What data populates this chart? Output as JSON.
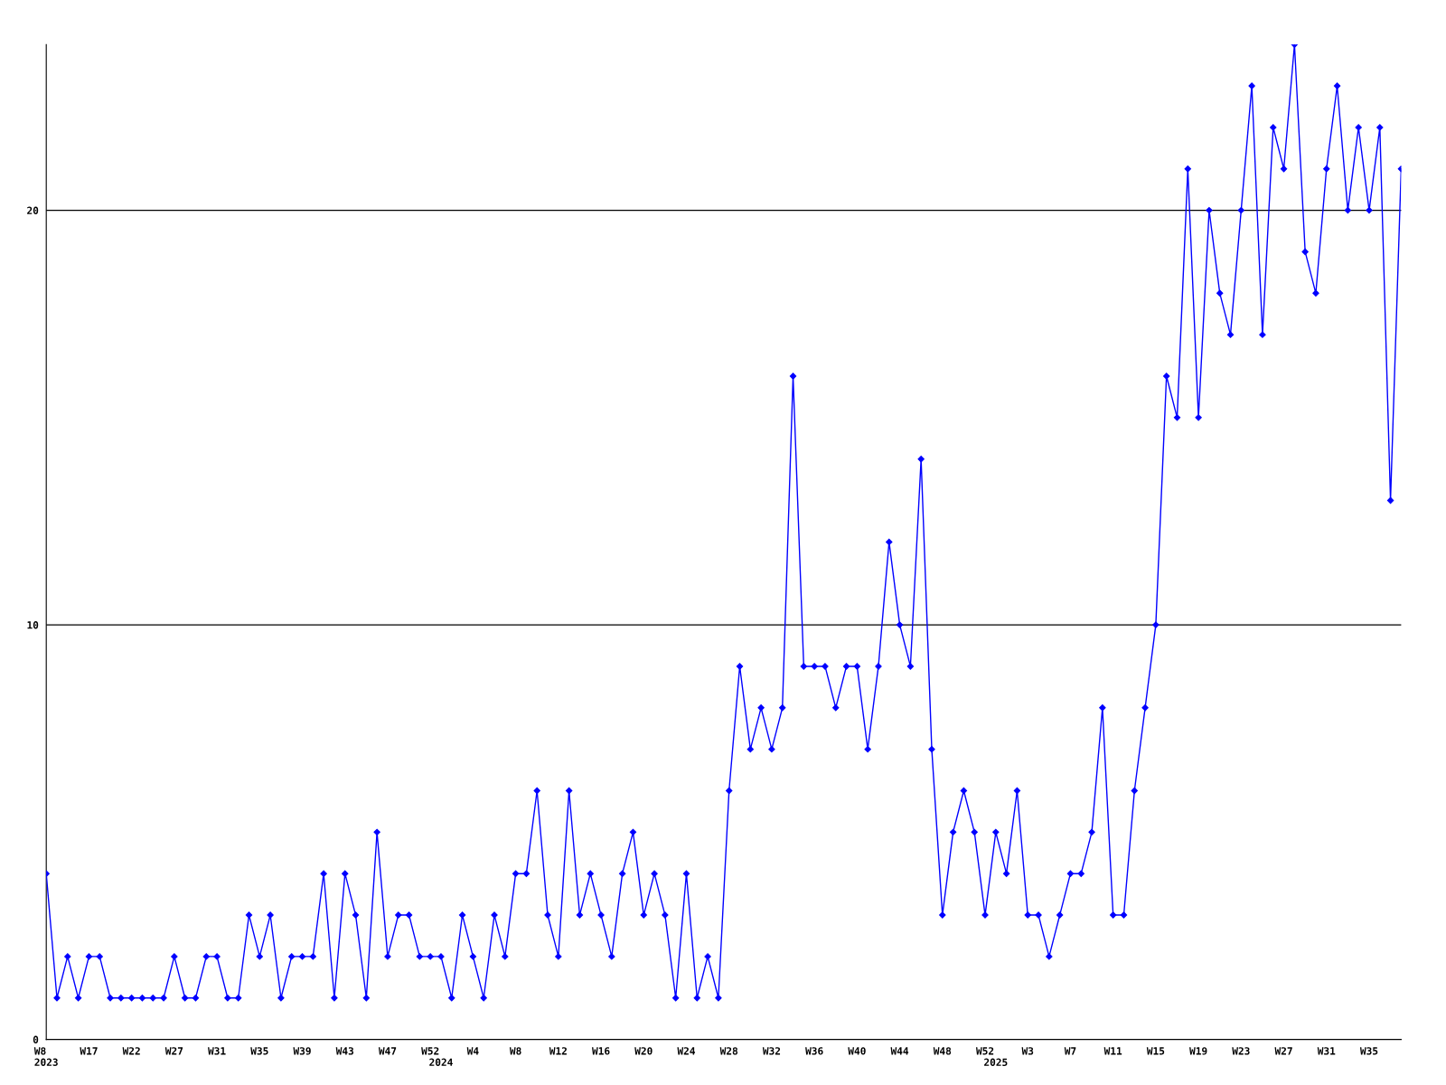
{
  "chart_data": {
    "type": "line",
    "categories": [
      "W8\n2023",
      null,
      null,
      null,
      "W17",
      null,
      null,
      null,
      "W22",
      null,
      null,
      null,
      "W27",
      null,
      null,
      null,
      "W31",
      null,
      null,
      null,
      "W35",
      null,
      null,
      null,
      "W39",
      null,
      null,
      null,
      "W43",
      null,
      null,
      null,
      "W47",
      null,
      null,
      null,
      "W52",
      "\n2024",
      null,
      null,
      "W4",
      null,
      null,
      null,
      "W8",
      null,
      null,
      null,
      "W12",
      null,
      null,
      null,
      "W16",
      null,
      null,
      null,
      "W20",
      null,
      null,
      null,
      "W24",
      null,
      null,
      null,
      "W28",
      null,
      null,
      null,
      "W32",
      null,
      null,
      null,
      "W36",
      null,
      null,
      null,
      "W40",
      null,
      null,
      null,
      "W44",
      null,
      null,
      null,
      "W48",
      null,
      null,
      null,
      "W52",
      "\n2025",
      null,
      null,
      "W3",
      null,
      null,
      null,
      "W7",
      null,
      null,
      null,
      "W11",
      null,
      null,
      null,
      "W15",
      null,
      null,
      null,
      "W19",
      null,
      null,
      null,
      "W23",
      null,
      null,
      null,
      "W27",
      null,
      null,
      null,
      "W31",
      null,
      null,
      null,
      "W35",
      null,
      null,
      null
    ],
    "series": [
      {
        "color": "#0000ff",
        "values": [
          4,
          1,
          2,
          1,
          2,
          2,
          1,
          1,
          1,
          1,
          1,
          1,
          2,
          1,
          1,
          2,
          2,
          1,
          1,
          3,
          2,
          3,
          1,
          2,
          2,
          2,
          4,
          1,
          4,
          3,
          1,
          5,
          2,
          3,
          3,
          2,
          2,
          2,
          1,
          3,
          2,
          1,
          3,
          2,
          4,
          4,
          6,
          3,
          2,
          6,
          3,
          4,
          3,
          2,
          4,
          5,
          3,
          4,
          3,
          1,
          4,
          1,
          2,
          1,
          6,
          9,
          7,
          8,
          7,
          8,
          16,
          9,
          9,
          9,
          8,
          9,
          9,
          7,
          9,
          12,
          10,
          9,
          14,
          7,
          3,
          5,
          6,
          5,
          3,
          5,
          4,
          6,
          3,
          3,
          2,
          3,
          4,
          4,
          5,
          8,
          3,
          3,
          6,
          8,
          10,
          16,
          15,
          21,
          15,
          20,
          18,
          17,
          20,
          23,
          17,
          22,
          21,
          24,
          19,
          18,
          21,
          23,
          20,
          22,
          20,
          22,
          13,
          21
        ]
      }
    ],
    "ylim": [
      0,
      24
    ],
    "yticks": [
      0,
      10,
      20
    ],
    "grid": "y",
    "marker": "diamond",
    "line_style": "solid",
    "legend": false
  }
}
